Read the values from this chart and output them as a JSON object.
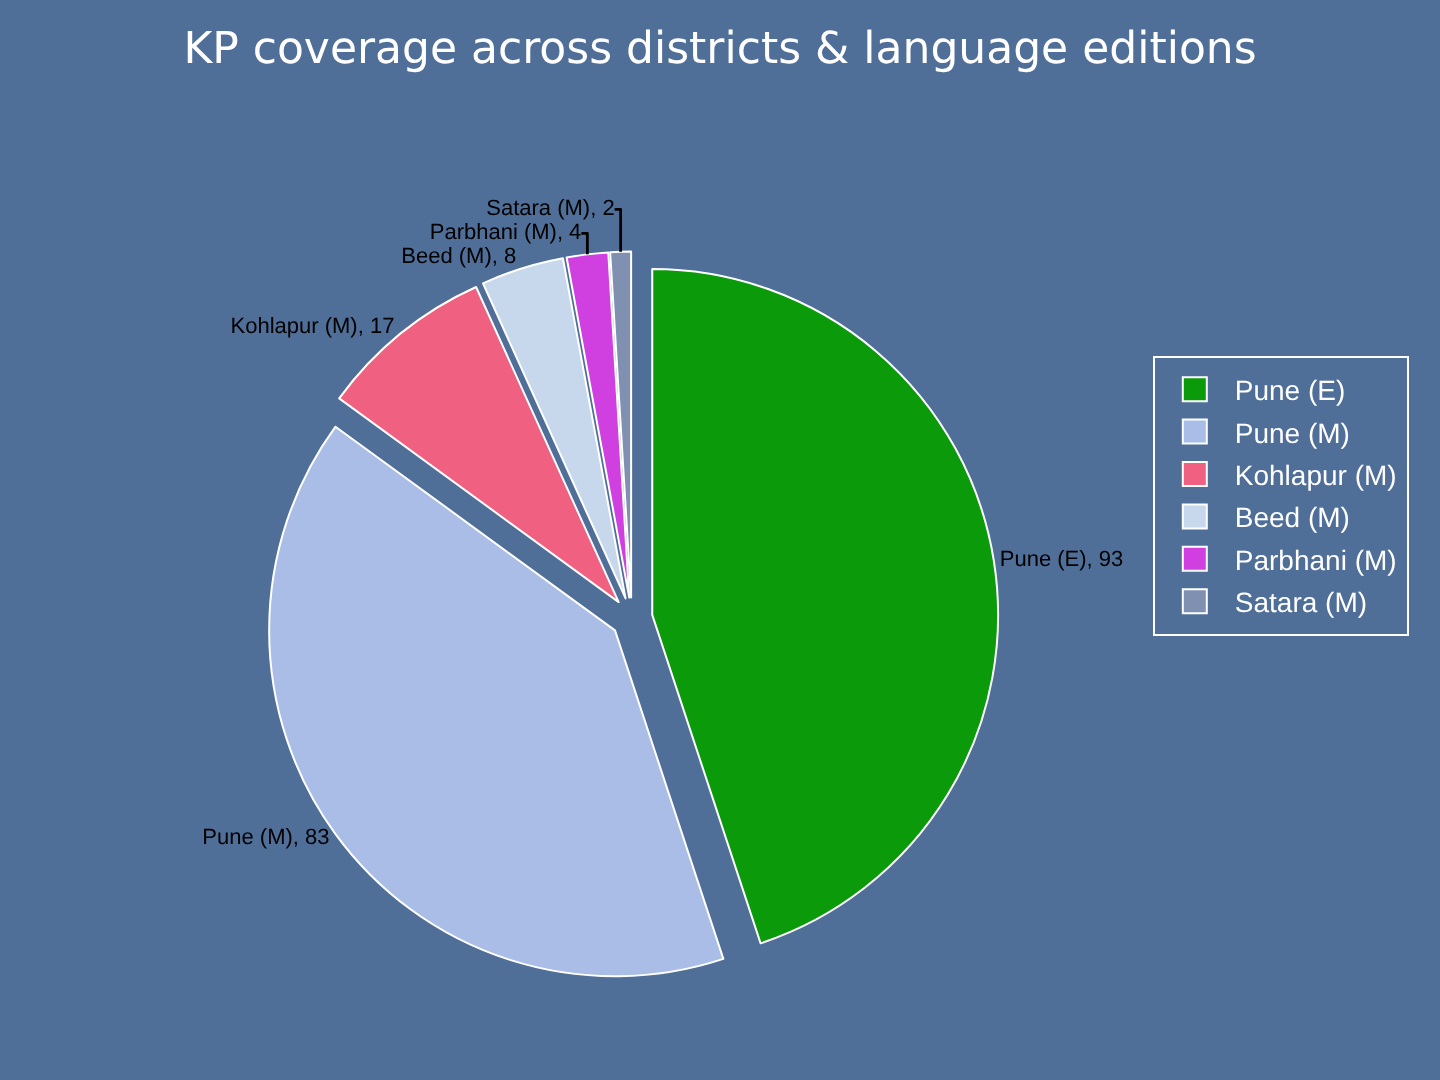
{
  "chart_data": {
    "type": "pie",
    "title": "KP coverage across districts & language editions",
    "categories": [
      "Pune (E)",
      "Pune (M)",
      "Kohlapur (M)",
      "Beed (M)",
      "Parbhani (M)",
      "Satara (M)"
    ],
    "values": [
      93,
      83,
      17,
      8,
      4,
      2
    ],
    "colors": [
      "#0a9a0a",
      "#a9bde6",
      "#f06080",
      "#c8d8ec",
      "#d040e0",
      "#8090b0"
    ],
    "value_labels": [
      "Pune (E), 93",
      "Pune (M), 83",
      "Kohlapur (M), 17",
      "Beed (M), 8",
      "Parbhani (M), 4",
      "Satara (M), 2"
    ],
    "legend": "right"
  }
}
